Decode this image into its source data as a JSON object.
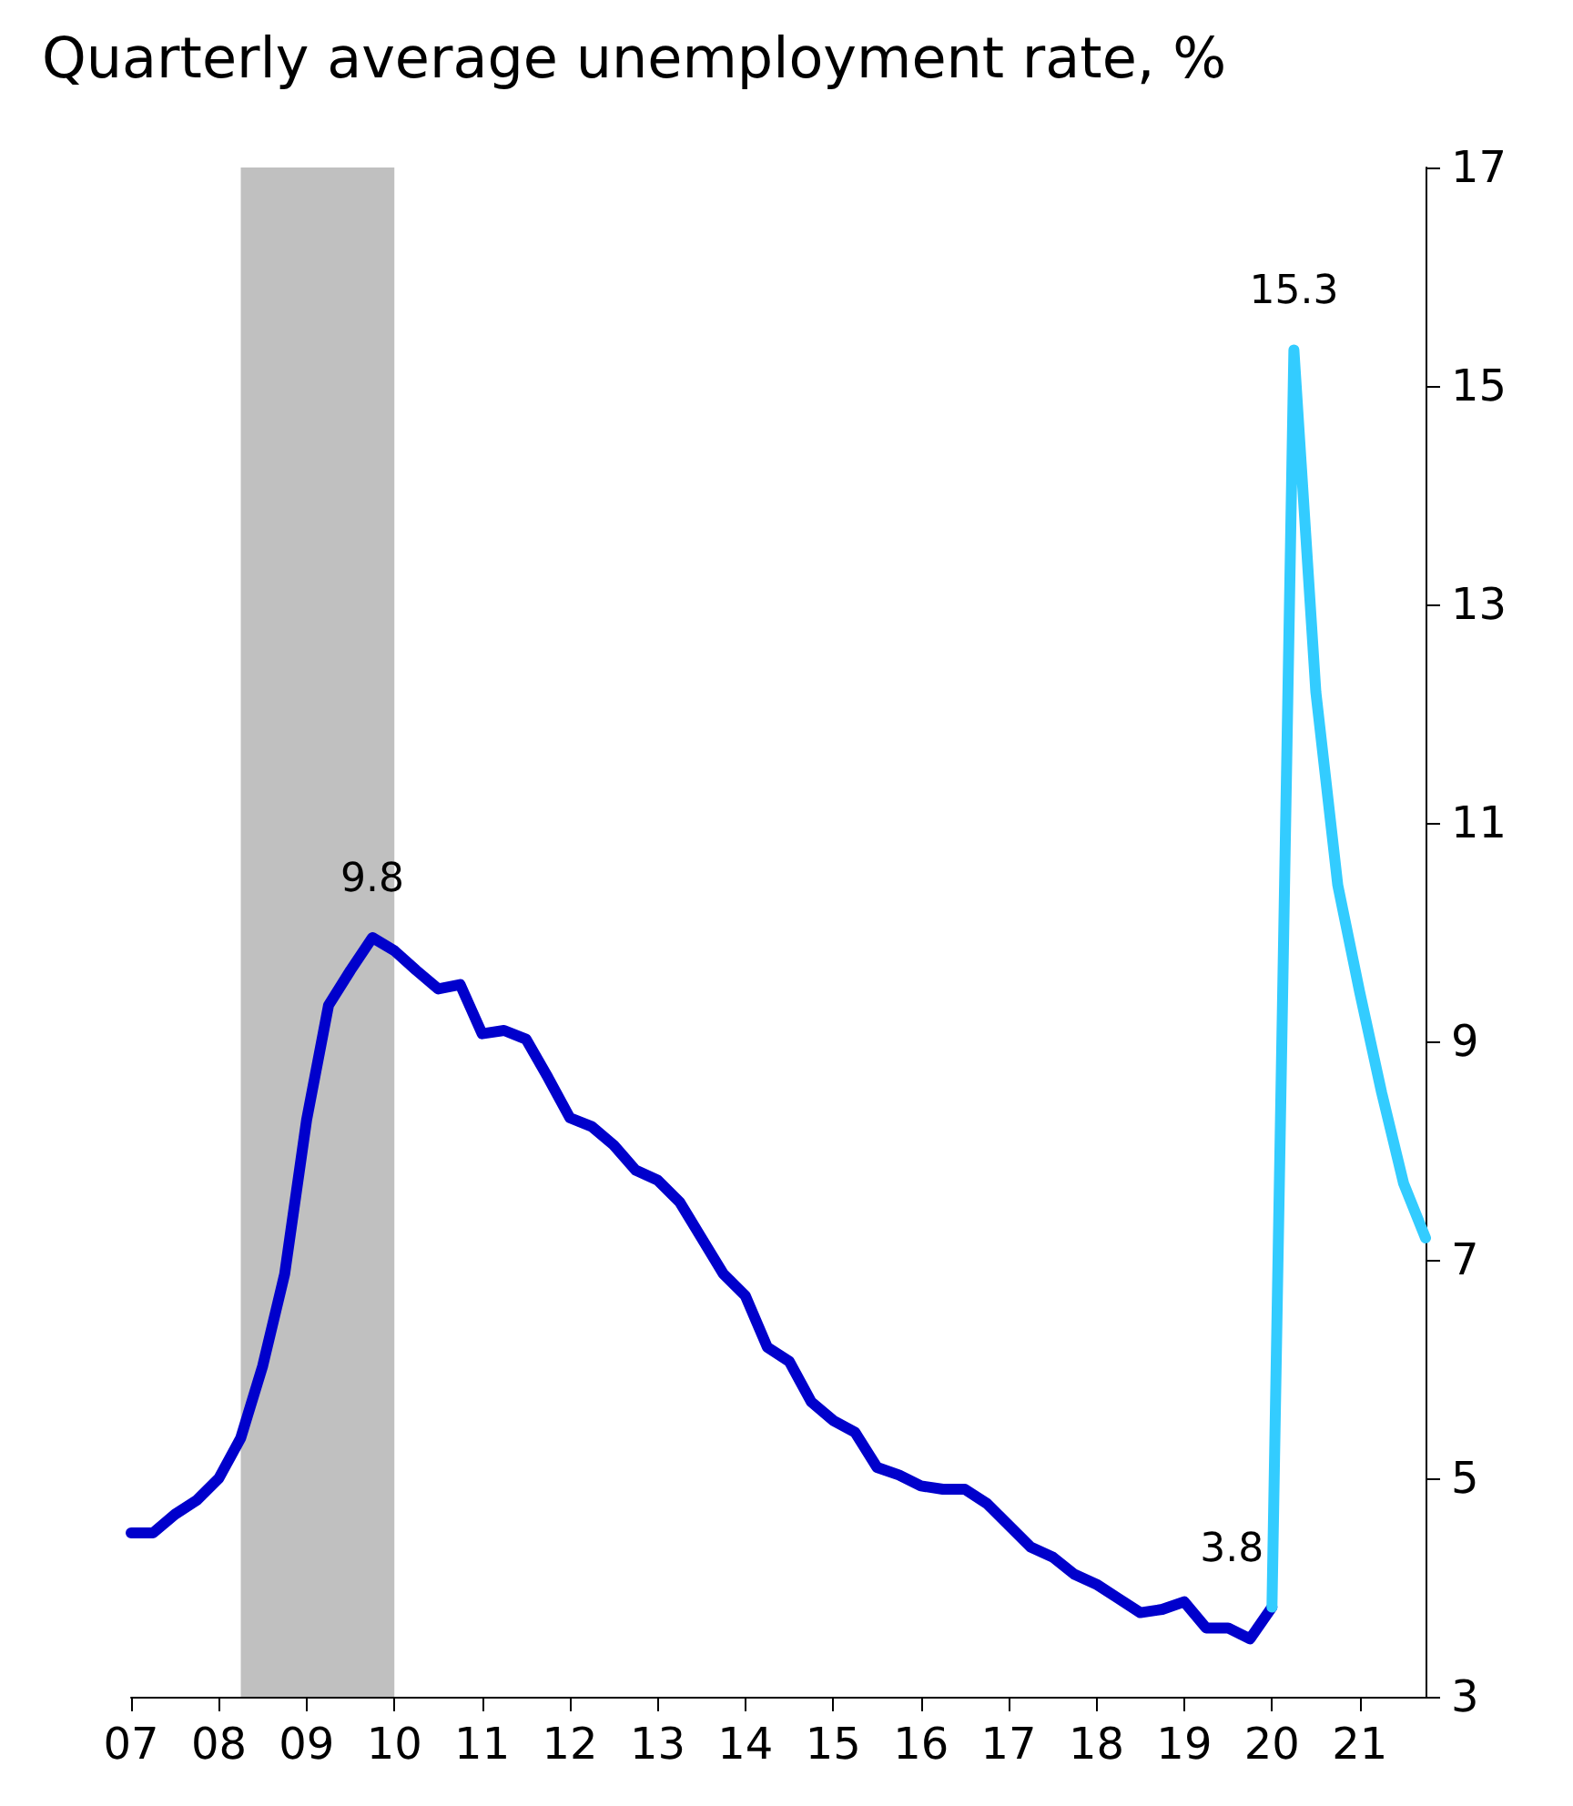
{
  "chart_data": {
    "type": "line",
    "title": "Quarterly average unemployment rate, %",
    "xlim": [
      2007,
      2021.75
    ],
    "xticks": [
      {
        "value": 2007,
        "label": "07"
      },
      {
        "value": 2008,
        "label": "08"
      },
      {
        "value": 2009,
        "label": "09"
      },
      {
        "value": 2010,
        "label": "10"
      },
      {
        "value": 2011,
        "label": "11"
      },
      {
        "value": 2012,
        "label": "12"
      },
      {
        "value": 2013,
        "label": "13"
      },
      {
        "value": 2014,
        "label": "14"
      },
      {
        "value": 2015,
        "label": "15"
      },
      {
        "value": 2016,
        "label": "16"
      },
      {
        "value": 2017,
        "label": "17"
      },
      {
        "value": 2018,
        "label": "18"
      },
      {
        "value": 2019,
        "label": "19"
      },
      {
        "value": 2020,
        "label": "20"
      },
      {
        "value": 2021,
        "label": "21"
      }
    ],
    "ylim": [
      3,
      17
    ],
    "yticks": [
      3,
      5,
      7,
      9,
      11,
      13,
      15,
      17
    ],
    "grid": false,
    "marker": "none",
    "line_style": "solid",
    "series": [
      {
        "color": "#0000cc",
        "x": [
          2007,
          2007.25,
          2007.5,
          2007.75,
          2008,
          2008.25,
          2008.5,
          2008.75,
          2009,
          2009.25,
          2009.5,
          2009.75,
          2010,
          2010.25,
          2010.5,
          2010.75,
          2011,
          2011.25,
          2011.5,
          2011.75,
          2012,
          2012.25,
          2012.5,
          2012.75,
          2013,
          2013.25,
          2013.5,
          2013.75,
          2014,
          2014.25,
          2014.5,
          2014.75,
          2015,
          2015.25,
          2015.5,
          2015.75,
          2016,
          2016.25,
          2016.5,
          2016.75,
          2017,
          2017.25,
          2017.5,
          2017.75,
          2018,
          2018.25,
          2018.5,
          2018.75,
          2019,
          2019.25,
          2019.5,
          2019.75,
          2020
        ],
        "values": [
          4.5,
          4.5,
          4.67,
          4.8,
          5.0,
          5.37,
          6.03,
          6.87,
          8.28,
          9.33,
          9.65,
          9.95,
          9.83,
          9.65,
          9.48,
          9.52,
          9.07,
          9.1,
          9.02,
          8.67,
          8.3,
          8.22,
          8.05,
          7.82,
          7.73,
          7.53,
          7.2,
          6.87,
          6.67,
          6.2,
          6.07,
          5.7,
          5.53,
          5.42,
          5.1,
          5.03,
          4.93,
          4.9,
          4.9,
          4.77,
          4.57,
          4.37,
          4.28,
          4.12,
          4.03,
          3.9,
          3.77,
          3.8,
          3.87,
          3.63,
          3.63,
          3.53,
          3.82
        ]
      },
      {
        "color": "#33ccff",
        "x": [
          2020,
          2020.25,
          2020.5,
          2020.75,
          2021,
          2021.25,
          2021.5,
          2021.75
        ],
        "values": [
          3.82,
          15.33,
          12.2,
          10.43,
          9.45,
          8.53,
          7.7,
          7.2
        ]
      }
    ],
    "bands": [
      {
        "axis": "x",
        "from": 2008.25,
        "to": 2010,
        "color": "#c0c0c0"
      }
    ],
    "annotations": [
      {
        "text": "9.8",
        "x": 2009.75,
        "y": 9.95
      },
      {
        "text": "3.8",
        "x": 2020,
        "y": 3.82
      },
      {
        "text": "15.3",
        "x": 2020.25,
        "y": 15.33
      }
    ]
  }
}
